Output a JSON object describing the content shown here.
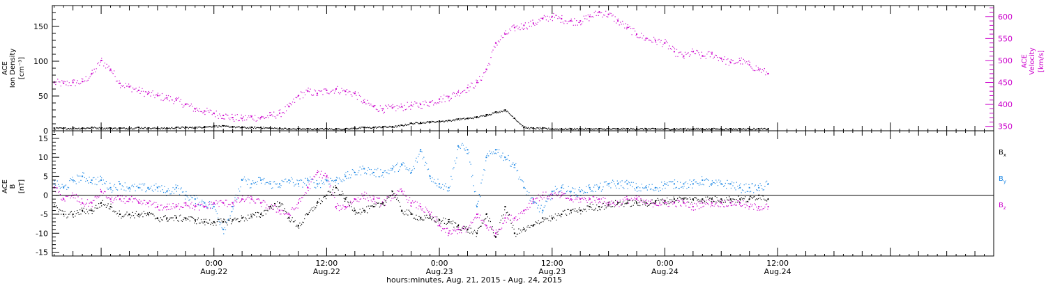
{
  "colors": {
    "axis": "#000000",
    "density": "#000000",
    "velocity": "#cc00cc",
    "bx": "#000000",
    "by": "#1e88e5",
    "bz": "#cc00cc"
  },
  "x_axis": {
    "title": "hours:minutes, Aug. 21, 2015 - Aug. 24, 2015",
    "range_hours": [
      -17.2,
      83
    ],
    "major_ticks": [
      {
        "hour": 0,
        "time": "0:00",
        "date": "Aug.22"
      },
      {
        "hour": 12,
        "time": "12:00",
        "date": "Aug.22"
      },
      {
        "hour": 24,
        "time": "0:00",
        "date": "Aug.23"
      },
      {
        "hour": 36,
        "time": "12:00",
        "date": "Aug.23"
      },
      {
        "hour": 48,
        "time": "0:00",
        "date": "Aug.24"
      },
      {
        "hour": 60,
        "time": "12:00",
        "date": "Aug.24"
      }
    ]
  },
  "chart_data": [
    {
      "type": "scatter",
      "panel": "top",
      "ylabel_lines": [
        "ACE",
        "Ion Density"
      ],
      "yunit": "[cm⁻³]",
      "ylim": [
        0,
        180
      ],
      "yticks": [
        "0",
        "50",
        "100",
        "150"
      ],
      "y2label_lines": [
        "ACE",
        "Velocity"
      ],
      "y2unit": "[km/s]",
      "y2lim": [
        340,
        625
      ],
      "y2ticks": [
        "350",
        "400",
        "450",
        "500",
        "550",
        "600"
      ],
      "x_hours": [
        -17,
        -16,
        -15,
        -14,
        -13,
        -12,
        -11,
        -10,
        -9,
        -8,
        -7,
        -6,
        -5,
        -4,
        -3,
        -2,
        -1,
        0,
        1,
        2,
        3,
        4,
        5,
        6,
        7,
        8,
        9,
        10,
        11,
        12,
        13,
        14,
        15,
        16,
        17,
        18,
        19,
        20,
        21,
        22,
        23,
        24,
        25,
        26,
        27,
        28,
        29,
        30,
        31,
        32,
        33,
        34,
        35,
        36,
        37,
        38,
        39,
        40,
        41,
        42,
        43,
        44,
        45,
        46,
        47,
        48,
        49,
        50,
        51,
        52,
        53,
        54,
        55,
        56,
        57,
        58,
        59
      ],
      "series": [
        {
          "name": "Ion Density",
          "axis": "left",
          "values": [
            4,
            4,
            4,
            4,
            5,
            4,
            4,
            4,
            4,
            5,
            4,
            4,
            4,
            5,
            5,
            5,
            6,
            7,
            7,
            6,
            5,
            5,
            5,
            4,
            4,
            3,
            3,
            3,
            3,
            3,
            3,
            3,
            4,
            5,
            5,
            6,
            6,
            8,
            11,
            12,
            13,
            14,
            15,
            17,
            18,
            20,
            23,
            27,
            30,
            18,
            5,
            4,
            4,
            3,
            3,
            3,
            3,
            3,
            3,
            3,
            3,
            3,
            3,
            3,
            3,
            3,
            3,
            3,
            3,
            3,
            3,
            3,
            3,
            3,
            3,
            3,
            3
          ]
        },
        {
          "name": "Velocity",
          "axis": "right",
          "values": [
            450,
            448,
            450,
            452,
            470,
            500,
            480,
            448,
            440,
            432,
            425,
            420,
            415,
            410,
            400,
            390,
            385,
            380,
            375,
            370,
            368,
            372,
            370,
            375,
            380,
            395,
            420,
            430,
            425,
            432,
            435,
            430,
            425,
            405,
            395,
            390,
            392,
            395,
            398,
            400,
            405,
            412,
            418,
            428,
            438,
            450,
            480,
            540,
            560,
            575,
            580,
            585,
            595,
            600,
            595,
            590,
            590,
            600,
            610,
            605,
            590,
            575,
            560,
            550,
            545,
            540,
            520,
            510,
            520,
            510,
            515,
            505,
            495,
            500,
            490,
            480,
            470
          ]
        }
      ]
    },
    {
      "type": "scatter",
      "panel": "bottom",
      "ylabel_lines": [
        "ACE",
        "B"
      ],
      "yunit": "[nT]",
      "ylim": [
        -16,
        17
      ],
      "yticks": [
        "-15",
        "-10",
        "-5",
        "0",
        "5",
        "10",
        "15"
      ],
      "x_hours": [
        -17,
        -16,
        -15,
        -14,
        -13,
        -12,
        -11,
        -10,
        -9,
        -8,
        -7,
        -6,
        -5,
        -4,
        -3,
        -2,
        -1,
        0,
        1,
        2,
        3,
        4,
        5,
        6,
        7,
        8,
        9,
        10,
        11,
        12,
        13,
        14,
        15,
        16,
        17,
        18,
        19,
        20,
        21,
        22,
        23,
        24,
        25,
        26,
        27,
        28,
        29,
        30,
        31,
        32,
        33,
        34,
        35,
        36,
        37,
        38,
        39,
        40,
        41,
        42,
        43,
        44,
        45,
        46,
        47,
        48,
        49,
        50,
        51,
        52,
        53,
        54,
        55,
        56,
        57,
        58,
        59
      ],
      "series": [
        {
          "name": "Bx",
          "legend_main": "B",
          "legend_sub": "x",
          "values": [
            -3,
            -5,
            -5,
            -4,
            -4,
            -2,
            -3,
            -5,
            -5,
            -5,
            -5,
            -6,
            -6,
            -6,
            -6,
            -6.5,
            -7,
            -7,
            -7,
            -6.5,
            -6,
            -5.5,
            -5,
            -3,
            -2,
            -6,
            -8,
            -5,
            -2,
            0,
            2,
            -1,
            -4,
            -4,
            -3,
            -2,
            1,
            -4,
            -5,
            -6,
            -6,
            -6.5,
            -7,
            -8,
            -9,
            -10,
            -5,
            -11,
            -3,
            -10,
            -9,
            -8,
            -6,
            -6,
            -5,
            -4,
            -4,
            -3,
            -3,
            -2.5,
            -2,
            -2,
            -2,
            -2,
            -1.5,
            -1.5,
            -1,
            -1,
            -1,
            -1,
            -1,
            -1,
            -1,
            -1,
            -1,
            0,
            -1
          ]
        },
        {
          "name": "By",
          "legend_main": "B",
          "legend_sub": "y",
          "values": [
            3,
            2,
            4,
            5,
            4,
            4,
            2,
            3,
            2,
            2,
            2,
            2,
            1,
            2,
            0,
            -1,
            -2,
            -3,
            -9,
            -3,
            4,
            3,
            4,
            3,
            3,
            4,
            3,
            4,
            3,
            4,
            4,
            5,
            6,
            7,
            6,
            6,
            7,
            8,
            6,
            12,
            5,
            3,
            2,
            13,
            12,
            -3,
            10,
            12,
            10,
            8,
            2,
            -2,
            -4,
            1,
            2,
            1,
            1,
            2,
            2,
            3,
            3,
            3,
            2,
            2,
            2,
            3,
            3,
            3,
            3,
            4,
            3,
            3,
            3,
            2,
            2,
            2,
            3
          ]
        },
        {
          "name": "Bz",
          "legend_main": "B",
          "legend_sub": "z",
          "values": [
            2,
            -1,
            0,
            -2,
            -2,
            1,
            -1,
            -1,
            -1,
            -2,
            -2,
            -3,
            -3,
            -3,
            -2,
            -3,
            -3,
            -2,
            -2,
            -2,
            -1,
            -1,
            -2,
            -3,
            -4,
            -5,
            -2,
            2,
            6,
            5,
            -3,
            -3,
            -1,
            0,
            -1,
            -2,
            0,
            1,
            -2,
            -3,
            -5,
            -8,
            -10,
            -9,
            -9,
            -5,
            -8,
            -10,
            -6,
            -6,
            -4,
            -1,
            0,
            0,
            0,
            -1,
            -1,
            -1,
            -1,
            -2,
            -2,
            -1,
            -1,
            -2,
            -2,
            -2,
            -2,
            -2,
            -3,
            -2,
            -2,
            -2,
            -2,
            -2,
            -3,
            -3,
            -3
          ]
        }
      ]
    }
  ]
}
